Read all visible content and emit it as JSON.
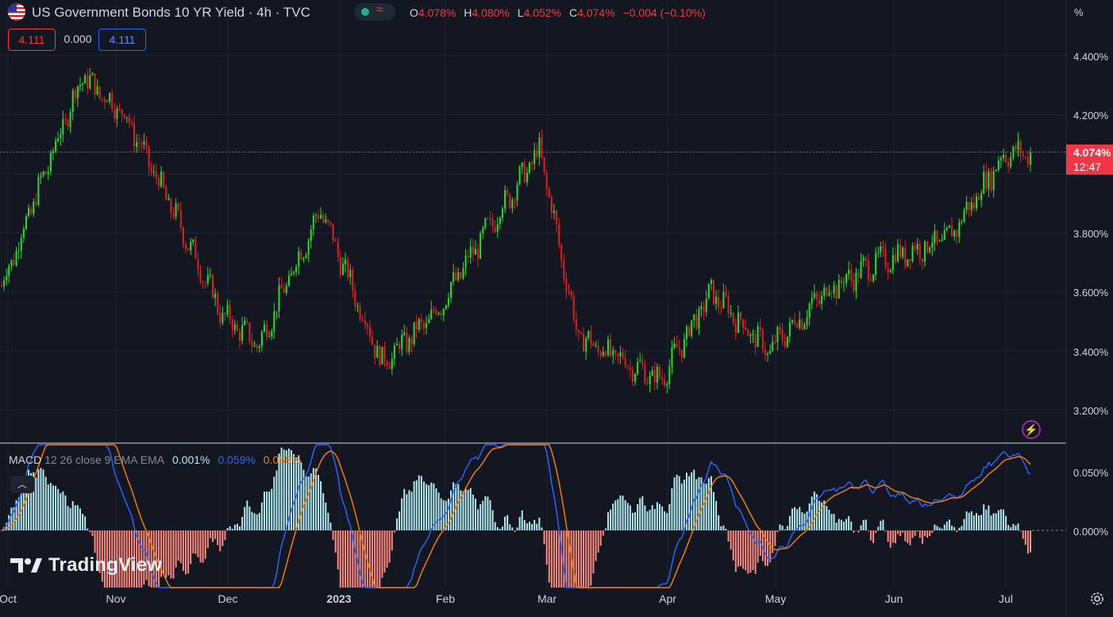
{
  "header": {
    "title": "US Government Bonds 10 YR Yield · 4h · TVC",
    "flag_icon": "us-flag-icon",
    "status_icon": "market-status-icon",
    "ohlc": [
      {
        "key": "O",
        "value": "4.078%"
      },
      {
        "key": "H",
        "value": "4.080%"
      },
      {
        "key": "L",
        "value": "4.052%"
      },
      {
        "key": "C",
        "value": "4.074%"
      },
      {
        "key": "",
        "value": "−0.004 (−0.10%)"
      }
    ],
    "bid": "4.111",
    "spread": "0.000",
    "ask": "4.111"
  },
  "price_axis": {
    "unit": "%",
    "labels": [
      "4.400%",
      "4.200%",
      "3.800%",
      "3.600%",
      "3.400%",
      "3.200%"
    ],
    "current_price": "4.074%",
    "countdown": "12:47"
  },
  "macd": {
    "name": "MACD",
    "params": "12 26 close 9 EMA EMA",
    "histogram_value": "0.001%",
    "macd_value": "0.059%",
    "signal_value": "0.058%",
    "axis_labels": [
      "0.050%",
      "0.000%"
    ],
    "collapse_icon": "chevron-up-icon"
  },
  "time_axis": {
    "labels": [
      "Oct",
      "Nov",
      "Dec",
      "2023",
      "Feb",
      "Mar",
      "Apr",
      "May",
      "Jun",
      "Jul"
    ]
  },
  "logo": {
    "text": "TradingView"
  },
  "colors": {
    "background": "#131722",
    "up": "#26e02a",
    "down": "#e0201b",
    "macd": "#2962ff",
    "signal": "#f57c00",
    "hist_up": "#b2ebf2",
    "hist_down": "#ff8a80",
    "price_tag": "#f23645"
  },
  "chart_data": {
    "type": "candlestick",
    "title": "US Government Bonds 10 YR Yield · 4h · TVC",
    "y_unit": "%",
    "ylim": [
      3.1,
      4.5
    ],
    "x_ticks": [
      "Oct",
      "Nov",
      "Dec",
      "2023",
      "Feb",
      "Mar",
      "Apr",
      "May",
      "Jun",
      "Jul"
    ],
    "last_close": 4.074,
    "series_approx_close_by_month": [
      {
        "x": "Oct",
        "y": 3.62
      },
      {
        "x": "Oct (late)",
        "y": 4.33
      },
      {
        "x": "Nov",
        "y": 4.2
      },
      {
        "x": "Nov (mid)",
        "y": 3.85
      },
      {
        "x": "Dec",
        "y": 3.52
      },
      {
        "x": "Dec (mid)",
        "y": 3.42
      },
      {
        "x": "2023",
        "y": 3.88
      },
      {
        "x": "Jan (mid)",
        "y": 3.36
      },
      {
        "x": "Feb",
        "y": 3.52
      },
      {
        "x": "Feb (mid)",
        "y": 3.8
      },
      {
        "x": "Mar",
        "y": 4.08
      },
      {
        "x": "Mar (mid)",
        "y": 3.45
      },
      {
        "x": "Apr",
        "y": 3.3
      },
      {
        "x": "Apr (mid)",
        "y": 3.6
      },
      {
        "x": "May",
        "y": 3.4
      },
      {
        "x": "May (mid)",
        "y": 3.6
      },
      {
        "x": "Jun",
        "y": 3.7
      },
      {
        "x": "Jun (mid)",
        "y": 3.78
      },
      {
        "x": "Jul",
        "y": 4.07
      }
    ],
    "macd_ylim": [
      -0.18,
      0.08
    ]
  }
}
